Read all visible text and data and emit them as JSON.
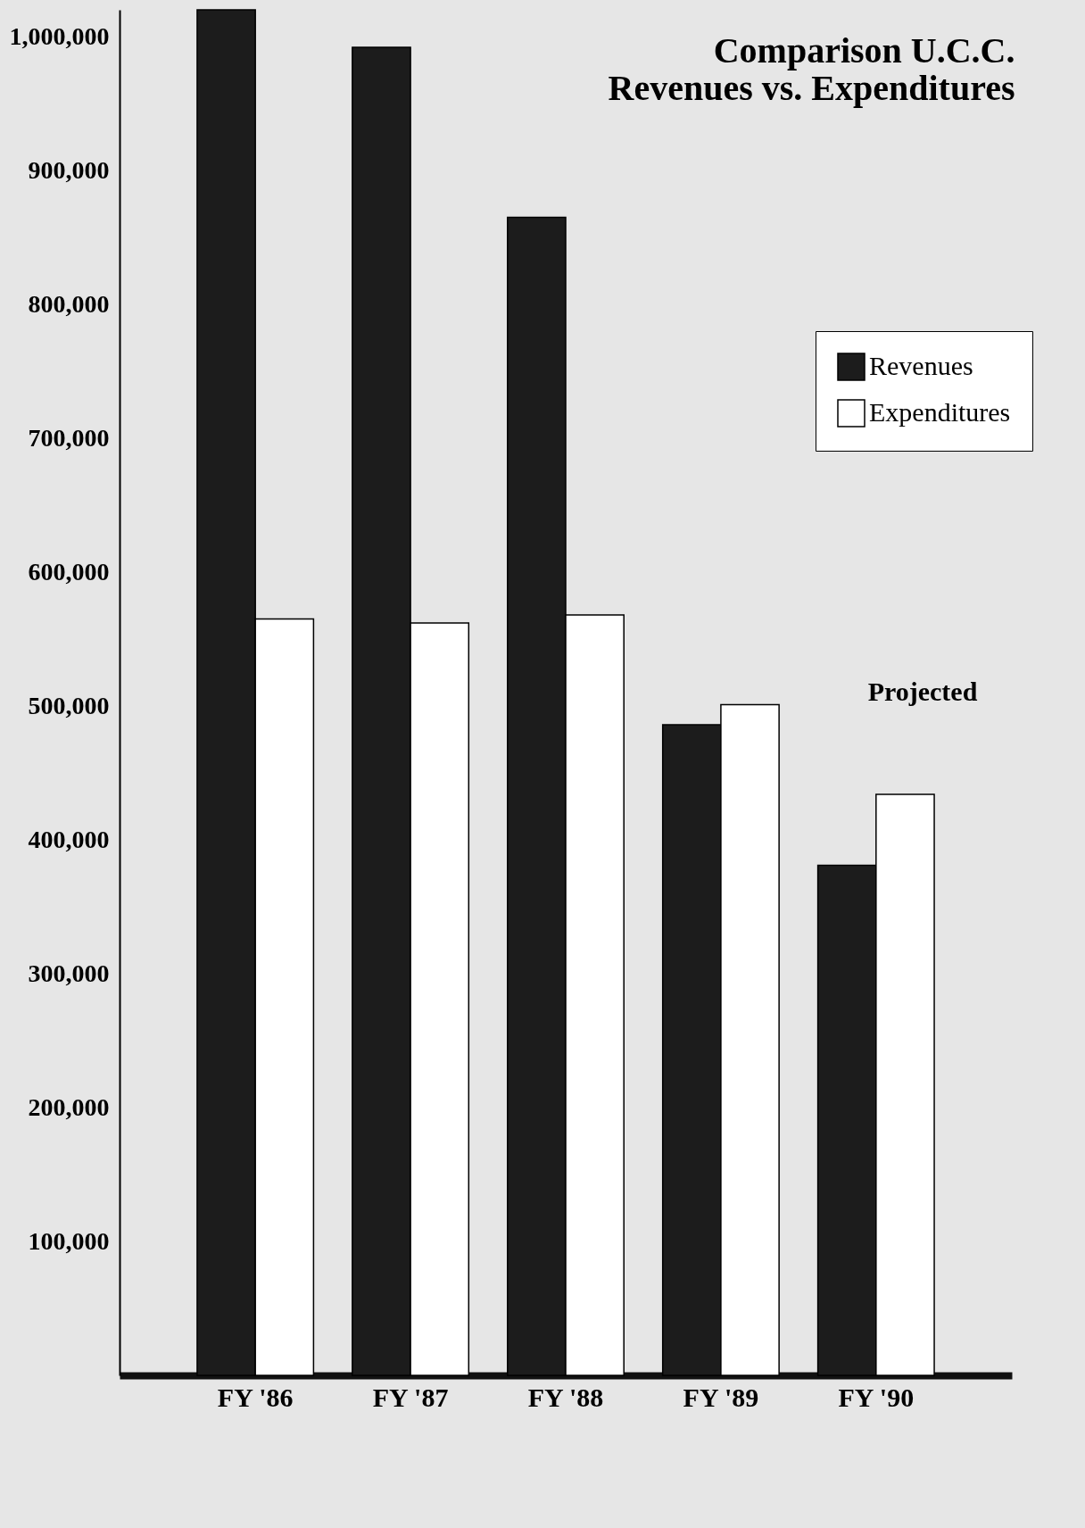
{
  "chart_data": {
    "type": "bar",
    "title": [
      "Comparison U.C.C.",
      "Revenues vs. Expenditures"
    ],
    "categories": [
      "FY '86",
      "FY '87",
      "FY '88",
      "FY '89",
      "FY '90"
    ],
    "series": [
      {
        "name": "Revenues",
        "color": "#1c1c1c",
        "values": [
          1020000,
          992000,
          865000,
          486000,
          381000
        ]
      },
      {
        "name": "Expenditures",
        "color": "#ffffff",
        "values": [
          565000,
          562000,
          568000,
          501000,
          434000
        ]
      }
    ],
    "ylim": [
      0,
      1020000
    ],
    "yticks": [
      {
        "value": 100000,
        "label": "100,000"
      },
      {
        "value": 200000,
        "label": "200,000"
      },
      {
        "value": 300000,
        "label": "300,000"
      },
      {
        "value": 400000,
        "label": "400,000"
      },
      {
        "value": 500000,
        "label": "500,000"
      },
      {
        "value": 600000,
        "label": "600,000"
      },
      {
        "value": 700000,
        "label": "700,000"
      },
      {
        "value": 800000,
        "label": "800,000"
      },
      {
        "value": 900000,
        "label": "900,000"
      },
      {
        "value": 1000000,
        "label": "1,000,000"
      }
    ],
    "annotations": [
      "Projected"
    ],
    "grid": false,
    "legend": "top right"
  }
}
